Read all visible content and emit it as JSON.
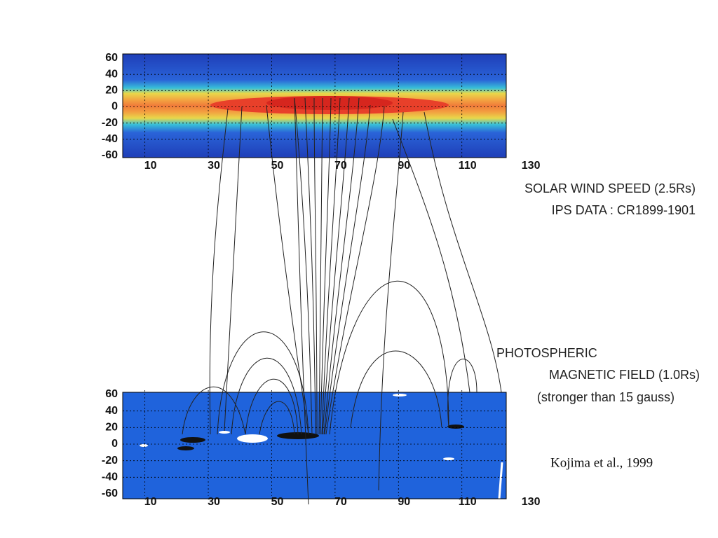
{
  "panels": [
    {
      "type": "heatmap",
      "xlim": [
        3,
        124
      ],
      "ylim": [
        -60,
        60
      ],
      "xticks": [
        10,
        30,
        50,
        70,
        90,
        110,
        130
      ],
      "yticks": [
        60,
        40,
        20,
        0,
        -20,
        -40,
        -60
      ]
    },
    {
      "type": "heatmap",
      "xlim": [
        3,
        124
      ],
      "ylim": [
        -60,
        60
      ],
      "xticks": [
        10,
        30,
        50,
        70,
        90,
        110,
        130
      ],
      "yticks": [
        60,
        40,
        20,
        0,
        -20,
        -40,
        -60
      ]
    }
  ],
  "labels": {
    "solar_wind": [
      "SOLAR WIND SPEED (2.5Rs)",
      "IPS DATA : CR1899-1901"
    ],
    "photospheric": [
      "PHOTOSPHERIC",
      "MAGNETIC FIELD (1.0Rs)",
      "(stronger than 15 gauss)"
    ]
  },
  "credit": "Kojima et al., 1999"
}
